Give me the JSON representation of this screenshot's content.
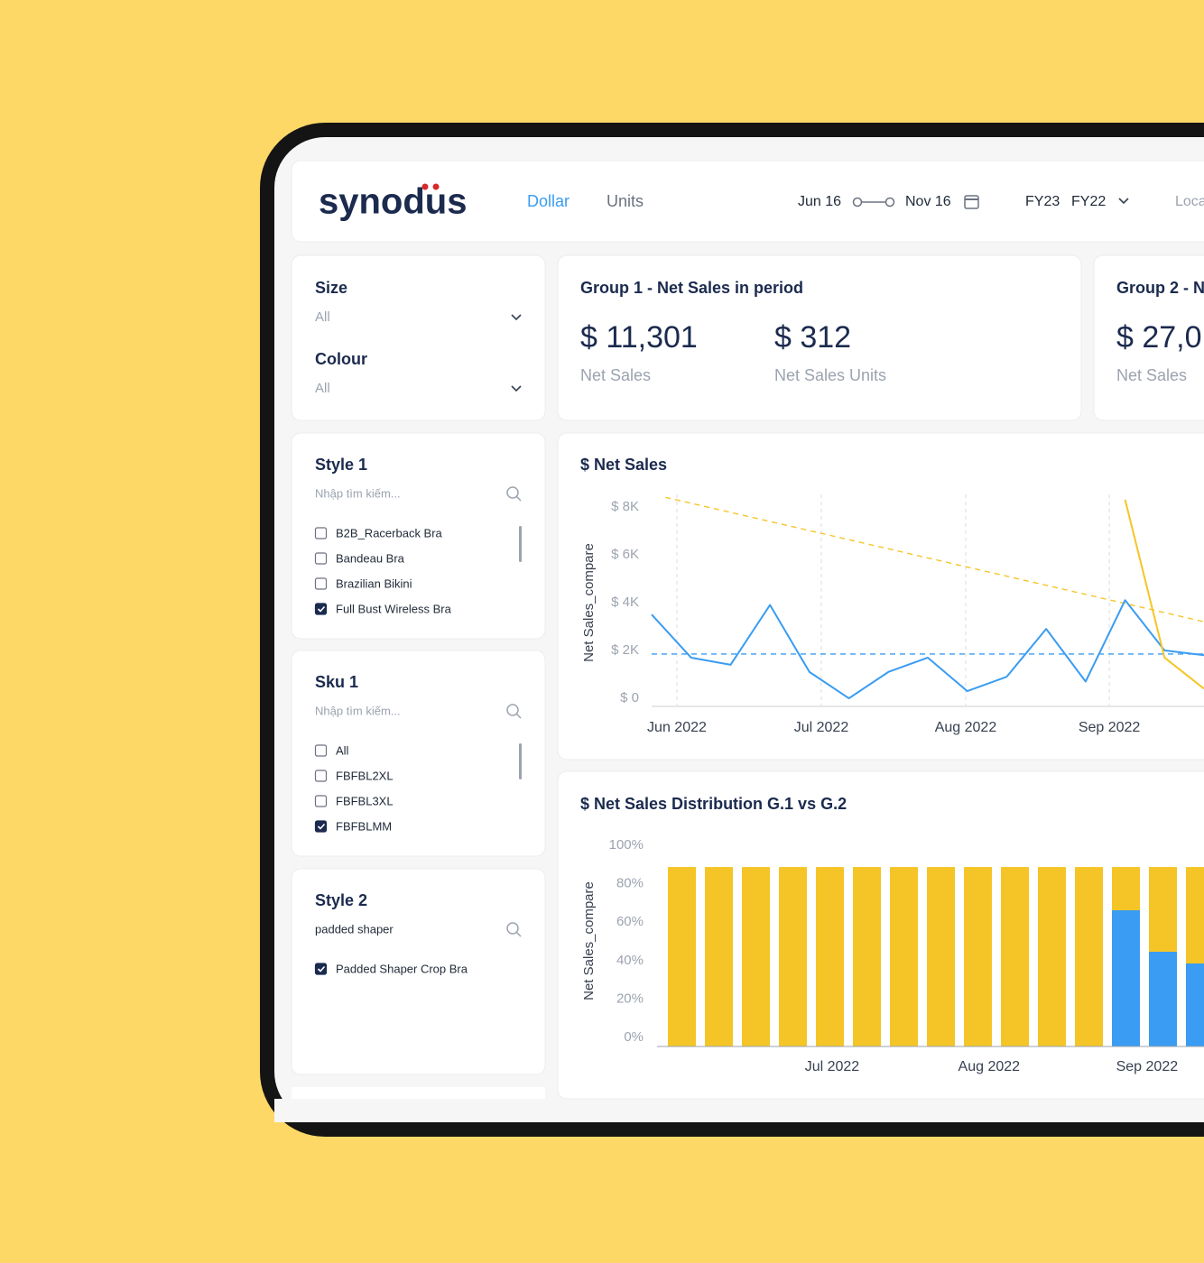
{
  "header": {
    "logo": "synodus",
    "tabs": [
      "Dollar",
      "Units"
    ],
    "date_start": "Jun 16",
    "date_end": "Nov 16",
    "fiscal_years": [
      "FY23",
      "FY22"
    ],
    "location": "Loca"
  },
  "dropdowns": [
    {
      "label": "Size",
      "value": "All"
    },
    {
      "label": "Colour",
      "value": "All"
    }
  ],
  "search_lists": [
    {
      "title": "Style 1",
      "placeholder": "Nhập tìm kiếm...",
      "items": [
        {
          "label": "B2B_Racerback Bra",
          "checked": false
        },
        {
          "label": "Bandeau Bra",
          "checked": false
        },
        {
          "label": "Brazilian Bikini",
          "checked": false
        },
        {
          "label": "Full Bust Wireless Bra",
          "checked": true
        }
      ]
    },
    {
      "title": "Sku 1",
      "placeholder": "Nhập tìm kiếm...",
      "items": [
        {
          "label": "All",
          "checked": false
        },
        {
          "label": "FBFBL2XL",
          "checked": false
        },
        {
          "label": "FBFBL3XL",
          "checked": false
        },
        {
          "label": "FBFBLMM",
          "checked": true
        }
      ]
    },
    {
      "title": "Style 2",
      "query": "padded shaper",
      "items": [
        {
          "label": "Padded Shaper Crop Bra",
          "checked": true
        }
      ]
    }
  ],
  "kpi_cards": [
    {
      "title": "Group 1 - Net Sales in period",
      "metrics": [
        {
          "value": "$ 11,301",
          "label": "Net Sales"
        },
        {
          "value": "$ 312",
          "label": "Net Sales Units"
        }
      ]
    },
    {
      "title": "Group 2 - N",
      "metrics": [
        {
          "value": "$ 27,0",
          "label": "Net Sales"
        }
      ]
    }
  ],
  "chart_data": [
    {
      "type": "line",
      "title": "$ Net Sales",
      "y_label": "Net Sales_compare",
      "x": [
        0,
        1,
        2,
        3,
        4,
        5,
        6,
        7,
        8,
        9,
        10,
        11,
        12,
        13,
        14
      ],
      "xlim": [
        0,
        14
      ],
      "xticks": [
        {
          "value": 0.64,
          "label": "Jun 2022"
        },
        {
          "value": 4.3,
          "label": "Jul 2022"
        },
        {
          "value": 7.96,
          "label": "Aug 2022"
        },
        {
          "value": 11.6,
          "label": "Sep 2022"
        }
      ],
      "ylim": [
        -300,
        8900
      ],
      "yticks": [
        {
          "value": 0,
          "label": "$ 0"
        },
        {
          "value": 2000,
          "label": "$ 2K"
        },
        {
          "value": 4000,
          "label": "$ 4K"
        },
        {
          "value": 6000,
          "label": "$ 6K"
        },
        {
          "value": 8000,
          "label": "$ 8K"
        }
      ],
      "grid": "x",
      "series": [
        {
          "color": "#3a9cf2",
          "values": [
            3500,
            1700,
            1400,
            3900,
            1100,
            0,
            1100,
            1700,
            300,
            900,
            2900,
            700,
            4100,
            2000,
            1800
          ]
        },
        {
          "color": "#f5c527",
          "values": [
            null,
            null,
            null,
            null,
            null,
            null,
            null,
            null,
            null,
            null,
            null,
            null,
            8300,
            1700,
            400
          ]
        }
      ],
      "trend_lines": [
        {
          "color": "#f5c527",
          "x": [
            0.35,
            14
          ],
          "values": [
            8400,
            3200
          ]
        },
        {
          "color": "#3a9cf2",
          "x": [
            0,
            14
          ],
          "values": [
            1850,
            1850
          ]
        }
      ]
    },
    {
      "type": "stacked_bar",
      "title": "$ Net Sales Distribution G.1 vs G.2",
      "y_label": "Net Sales_compare",
      "x": [
        0,
        1,
        2,
        3,
        4,
        5,
        6,
        7,
        8,
        9,
        10,
        11,
        12,
        13,
        14
      ],
      "xlim": [
        -0.5,
        14.5
      ],
      "xticks": [
        {
          "value": 4.06,
          "label": "Jul 2022"
        },
        {
          "value": 8.3,
          "label": "Aug 2022"
        },
        {
          "value": 12.57,
          "label": "Sep 2022"
        }
      ],
      "ylim": [
        0,
        100
      ],
      "yticks": [
        {
          "value": 0,
          "label": "0%"
        },
        {
          "value": 20,
          "label": "20%"
        },
        {
          "value": 40,
          "label": "40%"
        },
        {
          "value": 60,
          "label": "60%"
        },
        {
          "value": 80,
          "label": "80%"
        },
        {
          "value": 100,
          "label": "100%"
        }
      ],
      "series": [
        {
          "color": "#3a9cf2",
          "values": [
            0,
            0,
            0,
            0,
            0,
            0,
            0,
            0,
            0,
            0,
            0,
            0,
            70.9,
            49.3,
            43.2
          ]
        },
        {
          "color": "#f5c527",
          "values": [
            93.4,
            93.4,
            93.4,
            93.4,
            93.4,
            93.4,
            93.4,
            93.4,
            93.4,
            93.4,
            93.4,
            93.4,
            22.5,
            44.1,
            50.2
          ]
        }
      ]
    }
  ]
}
